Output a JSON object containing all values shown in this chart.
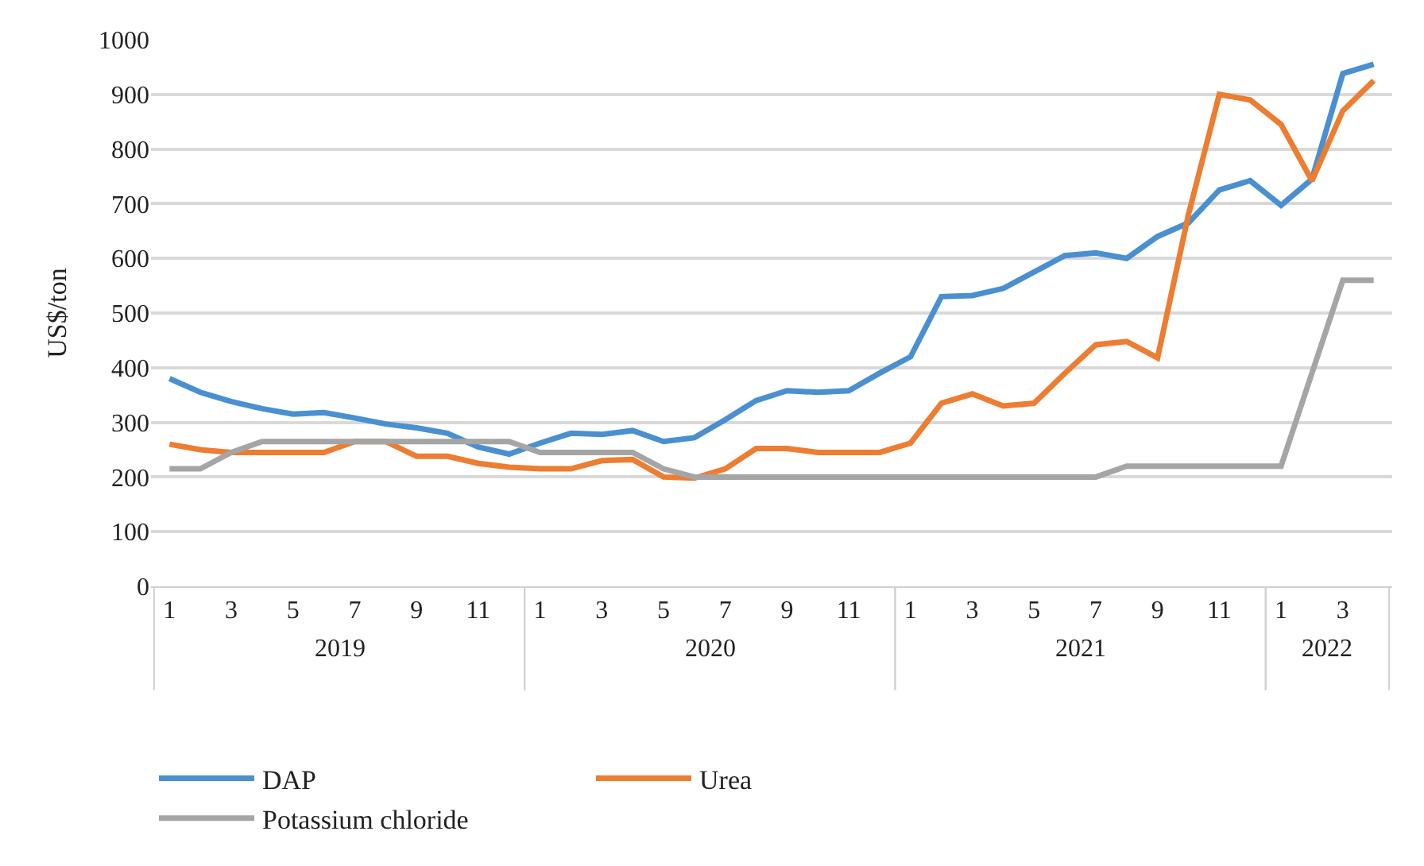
{
  "chart_data": {
    "type": "line",
    "ylabel": "US$/ton",
    "categories": [
      "1",
      null,
      "3",
      null,
      "5",
      null,
      "7",
      null,
      "9",
      null,
      "11",
      null,
      "1",
      null,
      "3",
      null,
      "5",
      null,
      "7",
      null,
      "9",
      null,
      "11",
      null,
      "1",
      null,
      "3",
      null,
      "5",
      null,
      "7",
      null,
      "9",
      null,
      "11",
      null,
      "1",
      null,
      "3",
      null
    ],
    "annotations": [
      "2019",
      "2020",
      "2021",
      "2022"
    ],
    "series": [
      {
        "name": "DAP",
        "color": "#4a90d0",
        "values": [
          380,
          355,
          338,
          325,
          315,
          318,
          308,
          297,
          290,
          280,
          255,
          242,
          262,
          280,
          278,
          285,
          265,
          272,
          305,
          340,
          358,
          355,
          358,
          390,
          420,
          530,
          532,
          545,
          575,
          605,
          610,
          600,
          640,
          665,
          725,
          742,
          697,
          745,
          938,
          955
        ]
      },
      {
        "name": "Urea",
        "color": "#ed7d31",
        "values": [
          260,
          250,
          245,
          245,
          245,
          245,
          265,
          265,
          238,
          238,
          225,
          218,
          215,
          215,
          230,
          232,
          200,
          198,
          215,
          252,
          252,
          245,
          245,
          245,
          262,
          335,
          352,
          330,
          335,
          390,
          442,
          448,
          418,
          680,
          900,
          890,
          845,
          742,
          870,
          925
        ]
      },
      {
        "name": "Potassium chloride",
        "color": "#a5a5a5",
        "values": [
          215,
          215,
          245,
          265,
          265,
          265,
          265,
          265,
          265,
          265,
          265,
          265,
          245,
          245,
          245,
          245,
          215,
          200,
          200,
          200,
          200,
          200,
          200,
          200,
          200,
          200,
          200,
          200,
          200,
          200,
          200,
          220,
          220,
          220,
          220,
          220,
          220,
          390,
          560,
          560
        ]
      }
    ],
    "ylim": [
      0,
      1000
    ],
    "yticks": [
      0,
      100,
      200,
      300,
      400,
      500,
      600,
      700,
      800,
      900,
      1000
    ],
    "grid": "y",
    "legend": "bottom",
    "marker": "none",
    "line_style": "solid"
  }
}
